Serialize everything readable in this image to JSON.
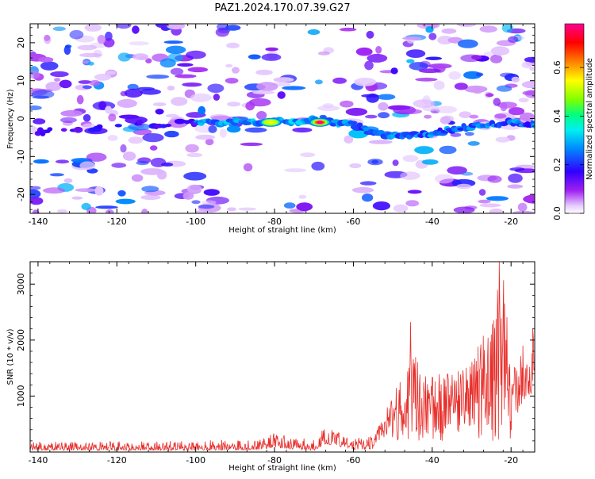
{
  "figure": {
    "title": "PAZ1.2024.170.07.39.G27"
  },
  "chart_data": [
    {
      "type": "heatmap",
      "title": "PAZ1.2024.170.07.39.G27",
      "xlabel": "Height of straight line (km)",
      "ylabel": "Frequency (Hz)",
      "xlim": [
        -142,
        -14
      ],
      "ylim": [
        -25,
        25
      ],
      "xticks": [
        -140,
        -120,
        -100,
        -80,
        -60,
        -40,
        -20
      ],
      "yticks": [
        -20,
        -10,
        0,
        10,
        20
      ],
      "colorbar": {
        "label": "Normalized spectral amplitude",
        "range": [
          0,
          0.78
        ],
        "ticks": [
          0.0,
          0.2,
          0.4,
          0.6
        ],
        "colormap": "rainbow (white - purple - blue - cyan - green - yellow - red - magenta)"
      },
      "signal_track": {
        "description": "dominant spectral line",
        "x": [
          -140,
          -100,
          -90,
          -80,
          -70,
          -60,
          -55,
          -50,
          -40,
          -30,
          -20,
          -14
        ],
        "y": [
          -3.5,
          -1.0,
          -1.0,
          -1.0,
          -0.5,
          -1.5,
          -4.0,
          -4.5,
          -4.0,
          -2.0,
          -1.0,
          -1.5
        ]
      },
      "peaks": [
        {
          "x": -68.5,
          "y": -1.0,
          "value": 0.75
        },
        {
          "x": -81,
          "y": -1.0,
          "value": 0.5
        }
      ],
      "grid": false
    },
    {
      "type": "line",
      "xlabel": "Height of straight line (km)",
      "ylabel": "SNR (10 * v/v)",
      "xlim": [
        -142,
        -14
      ],
      "ylim": [
        0,
        3400
      ],
      "xticks": [
        -140,
        -120,
        -100,
        -80,
        -60,
        -40,
        -20
      ],
      "yticks": [
        1000,
        2000,
        3000
      ],
      "series": [
        {
          "color": "#e8302c",
          "envelope": {
            "x": [
              -142,
              -100,
              -85,
              -80,
              -75,
              -70,
              -67,
              -60,
              -55,
              -52,
              -50,
              -45,
              -40,
              -35,
              -30,
              -25,
              -22,
              -20,
              -18,
              -15,
              -14
            ],
            "low": [
              30,
              30,
              40,
              80,
              50,
              30,
              150,
              40,
              60,
              250,
              180,
              200,
              200,
              200,
              300,
              150,
              200,
              0,
              800,
              1000,
              1100
            ],
            "high": [
              180,
              200,
              250,
              350,
              250,
              250,
              450,
              250,
              300,
              700,
              1100,
              1800,
              1400,
              1400,
              1600,
              2500,
              3400,
              1400,
              1800,
              1700,
              2200
            ]
          },
          "spikes": [
            {
              "x": -45.5,
              "y": 2320
            },
            {
              "x": -23,
              "y": 3400
            },
            {
              "x": -22,
              "y": 2600
            },
            {
              "x": -25,
              "y": 2100
            },
            {
              "x": -17,
              "y": 1900
            },
            {
              "x": -14.5,
              "y": 2200
            }
          ]
        }
      ],
      "grid": false
    }
  ]
}
